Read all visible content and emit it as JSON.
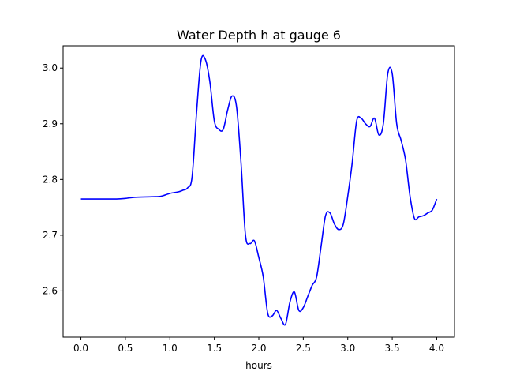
{
  "chart_data": {
    "type": "line",
    "title": "Water Depth h at gauge 6",
    "xlabel": "hours",
    "ylabel": "",
    "xlim": [
      -0.2,
      4.2
    ],
    "ylim": [
      2.517,
      3.04
    ],
    "xticks": [
      0.0,
      0.5,
      1.0,
      1.5,
      2.0,
      2.5,
      3.0,
      3.5,
      4.0
    ],
    "xtick_labels": [
      "0.0",
      "0.5",
      "1.0",
      "1.5",
      "2.0",
      "2.5",
      "3.0",
      "3.5",
      "4.0"
    ],
    "yticks": [
      2.6,
      2.7,
      2.8,
      2.9,
      3.0
    ],
    "ytick_labels": [
      "2.6",
      "2.7",
      "2.8",
      "2.9",
      "3.0"
    ],
    "grid": false,
    "series": [
      {
        "color": "#0000ff",
        "x": [
          0.0,
          0.2,
          0.4,
          0.5,
          0.6,
          0.8,
          0.9,
          1.0,
          1.1,
          1.15,
          1.2,
          1.25,
          1.3,
          1.35,
          1.4,
          1.45,
          1.5,
          1.55,
          1.6,
          1.65,
          1.7,
          1.75,
          1.8,
          1.85,
          1.9,
          1.95,
          2.0,
          2.05,
          2.1,
          2.15,
          2.2,
          2.25,
          2.3,
          2.35,
          2.4,
          2.45,
          2.5,
          2.55,
          2.6,
          2.65,
          2.7,
          2.75,
          2.8,
          2.85,
          2.9,
          2.95,
          3.0,
          3.05,
          3.1,
          3.15,
          3.2,
          3.25,
          3.3,
          3.35,
          3.4,
          3.45,
          3.5,
          3.55,
          3.6,
          3.65,
          3.7,
          3.75,
          3.8,
          3.85,
          3.9,
          3.95,
          4.0
        ],
        "y": [
          2.765,
          2.765,
          2.765,
          2.766,
          2.768,
          2.769,
          2.77,
          2.775,
          2.778,
          2.781,
          2.785,
          2.805,
          2.92,
          3.013,
          3.015,
          2.975,
          2.905,
          2.89,
          2.89,
          2.925,
          2.95,
          2.93,
          2.83,
          2.7,
          2.685,
          2.69,
          2.66,
          2.625,
          2.56,
          2.555,
          2.565,
          2.55,
          2.54,
          2.58,
          2.598,
          2.565,
          2.57,
          2.59,
          2.61,
          2.625,
          2.68,
          2.735,
          2.74,
          2.72,
          2.71,
          2.72,
          2.77,
          2.83,
          2.905,
          2.91,
          2.9,
          2.895,
          2.91,
          2.88,
          2.9,
          2.99,
          2.99,
          2.9,
          2.87,
          2.835,
          2.77,
          2.73,
          2.733,
          2.735,
          2.74,
          2.745,
          2.765
        ]
      }
    ]
  }
}
